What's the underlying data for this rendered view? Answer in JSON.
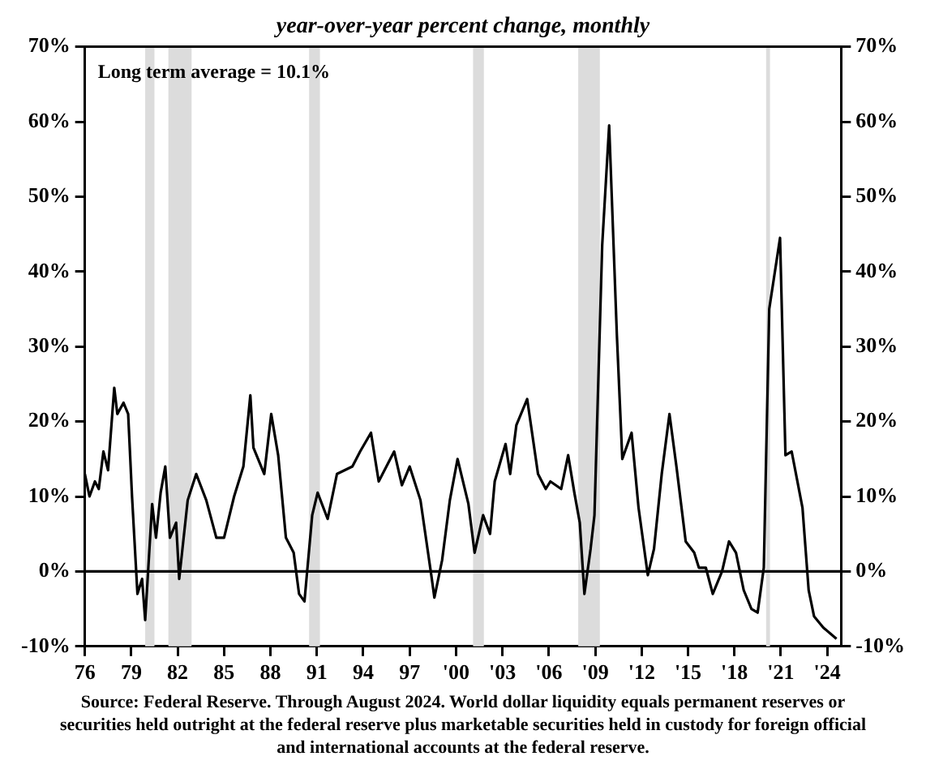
{
  "chart_data": {
    "type": "line",
    "subtitle": "year-over-year percent change, monthly",
    "x": [
      1976.0,
      1976.3,
      1976.65,
      1976.9,
      1977.2,
      1977.5,
      1977.9,
      1978.1,
      1978.5,
      1978.8,
      1979.05,
      1979.4,
      1979.7,
      1979.9,
      1980.35,
      1980.6,
      1980.9,
      1981.2,
      1981.5,
      1981.9,
      1982.1,
      1982.65,
      1983.2,
      1983.85,
      1984.5,
      1985.0,
      1985.65,
      1986.25,
      1986.7,
      1986.9,
      1987.6,
      1988.05,
      1988.5,
      1989.0,
      1989.5,
      1989.85,
      1990.2,
      1990.7,
      1991.05,
      1991.7,
      1992.3,
      1993.3,
      1993.8,
      1994.5,
      1995.0,
      1996.0,
      1996.5,
      1997.0,
      1997.7,
      1998.4,
      1998.6,
      1999.1,
      1999.6,
      2000.1,
      2000.8,
      2001.2,
      2001.75,
      2002.2,
      2002.5,
      2003.2,
      2003.5,
      2003.9,
      2004.6,
      2005.3,
      2005.8,
      2006.1,
      2006.8,
      2007.25,
      2007.65,
      2008.0,
      2008.3,
      2008.7,
      2008.95,
      2009.45,
      2009.9,
      2010.4,
      2010.75,
      2011.35,
      2011.8,
      2012.4,
      2012.8,
      2013.3,
      2013.8,
      2014.25,
      2014.85,
      2015.4,
      2015.7,
      2016.15,
      2016.6,
      2017.2,
      2017.65,
      2018.1,
      2018.6,
      2019.1,
      2019.5,
      2019.9,
      2020.25,
      2020.95,
      2021.3,
      2021.7,
      2022.4,
      2022.8,
      2023.15,
      2023.75,
      2024.6
    ],
    "series": [
      {
        "color": "#000000",
        "values": [
          13,
          10,
          12,
          11,
          16,
          13.5,
          24.5,
          21,
          22.5,
          21,
          10,
          -3,
          -1,
          -6.5,
          9,
          4.5,
          10.5,
          14,
          4.5,
          6.5,
          -1,
          9.5,
          13,
          9.5,
          4.5,
          4.5,
          10,
          14,
          23.5,
          16.5,
          13,
          21,
          15.5,
          4.5,
          2.5,
          -3,
          -4,
          7.5,
          10.5,
          7,
          13,
          14,
          16,
          18.5,
          12,
          16,
          11.5,
          14,
          9.5,
          -0.5,
          -3.5,
          1.5,
          9.5,
          15,
          9,
          2.5,
          7.5,
          5,
          12,
          17,
          13,
          19.5,
          23,
          13,
          11,
          12,
          11,
          15.5,
          10.5,
          6.5,
          -3,
          3,
          7.5,
          43.5,
          59.5,
          31.5,
          15,
          18.5,
          8.5,
          -0.5,
          3,
          13,
          21,
          14,
          4,
          2.5,
          0.5,
          0.5,
          -3,
          0,
          4,
          2.5,
          -2.5,
          -5,
          -5.5,
          0.5,
          35,
          44.5,
          15.5,
          16,
          8.5,
          -2.5,
          -6,
          -7.5,
          -9
        ]
      }
    ],
    "xlim": [
      1976,
      2024.9
    ],
    "xticks": [
      {
        "value": 1976,
        "label": "76"
      },
      {
        "value": 1979,
        "label": "79"
      },
      {
        "value": 1982,
        "label": "82"
      },
      {
        "value": 1985,
        "label": "85"
      },
      {
        "value": 1988,
        "label": "88"
      },
      {
        "value": 1991,
        "label": "91"
      },
      {
        "value": 1994,
        "label": "94"
      },
      {
        "value": 1997,
        "label": "97"
      },
      {
        "value": 2000,
        "label": "'00"
      },
      {
        "value": 2003,
        "label": "'03"
      },
      {
        "value": 2006,
        "label": "'06"
      },
      {
        "value": 2009,
        "label": "'09"
      },
      {
        "value": 2012,
        "label": "'12"
      },
      {
        "value": 2015,
        "label": "'15"
      },
      {
        "value": 2018,
        "label": "'18"
      },
      {
        "value": 2021,
        "label": "'21"
      },
      {
        "value": 2024,
        "label": "'24"
      }
    ],
    "ylim": [
      -10,
      70
    ],
    "yticks": [
      {
        "value": -10,
        "label": "-10%"
      },
      {
        "value": 0,
        "label": "0%"
      },
      {
        "value": 10,
        "label": "10%"
      },
      {
        "value": 20,
        "label": "20%"
      },
      {
        "value": 30,
        "label": "30%"
      },
      {
        "value": 40,
        "label": "40%"
      },
      {
        "value": 50,
        "label": "50%"
      },
      {
        "value": 60,
        "label": "60%"
      },
      {
        "value": 70,
        "label": "70%"
      }
    ],
    "y2lim": [
      -10,
      70
    ],
    "y2ticks": [
      {
        "value": -10,
        "label": "-10%"
      },
      {
        "value": 0,
        "label": "0%"
      },
      {
        "value": 10,
        "label": "10%"
      },
      {
        "value": 20,
        "label": "20%"
      },
      {
        "value": 30,
        "label": "30%"
      },
      {
        "value": 40,
        "label": "40%"
      },
      {
        "value": 50,
        "label": "50%"
      },
      {
        "value": 60,
        "label": "60%"
      },
      {
        "value": 70,
        "label": "70%"
      }
    ],
    "bands": [
      {
        "axis": "x",
        "from": 1979.9,
        "to": 1980.5,
        "color": "#dcdcdc"
      },
      {
        "axis": "x",
        "from": 1981.4,
        "to": 1982.9,
        "color": "#dcdcdc"
      },
      {
        "axis": "x",
        "from": 1990.5,
        "to": 1991.2,
        "color": "#dcdcdc"
      },
      {
        "axis": "x",
        "from": 2001.1,
        "to": 2001.8,
        "color": "#dcdcdc"
      },
      {
        "axis": "x",
        "from": 2007.9,
        "to": 2009.3,
        "color": "#dcdcdc"
      },
      {
        "axis": "x",
        "from": 2020.05,
        "to": 2020.3,
        "color": "#dcdcdc"
      }
    ],
    "ref_lines": [
      {
        "axis": "y",
        "value": 0,
        "color": "#000000"
      }
    ],
    "annotations": [
      "Long term average = 10.1%",
      "Source: Federal Reserve. Through August 2024. World dollar liquidity equals permanent reserves or securities held outright at the federal reserve plus marketable securities held in custody for foreign official and international accounts at the federal reserve."
    ],
    "grid": false,
    "legend": false,
    "marker": "none",
    "line_style": "solid"
  }
}
